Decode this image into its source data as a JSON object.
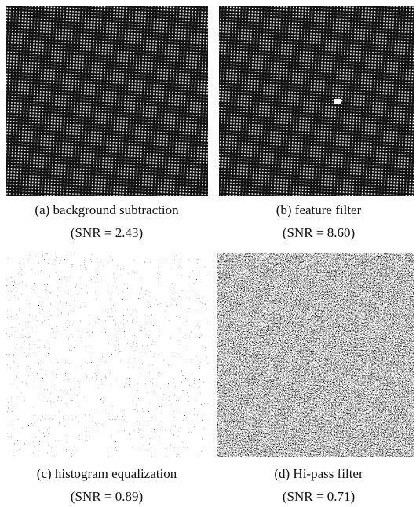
{
  "figure": {
    "panels": [
      {
        "label": "(a) background subtraction",
        "snr": "(SNR = 2.43)"
      },
      {
        "label": "(b) feature filter",
        "snr": "(SNR = 8.60)"
      },
      {
        "label": "(c) histogram equalization",
        "snr": "(SNR = 0.89)"
      },
      {
        "label": "(d) Hi-pass filter",
        "snr": "(SNR = 0.71)"
      }
    ]
  }
}
